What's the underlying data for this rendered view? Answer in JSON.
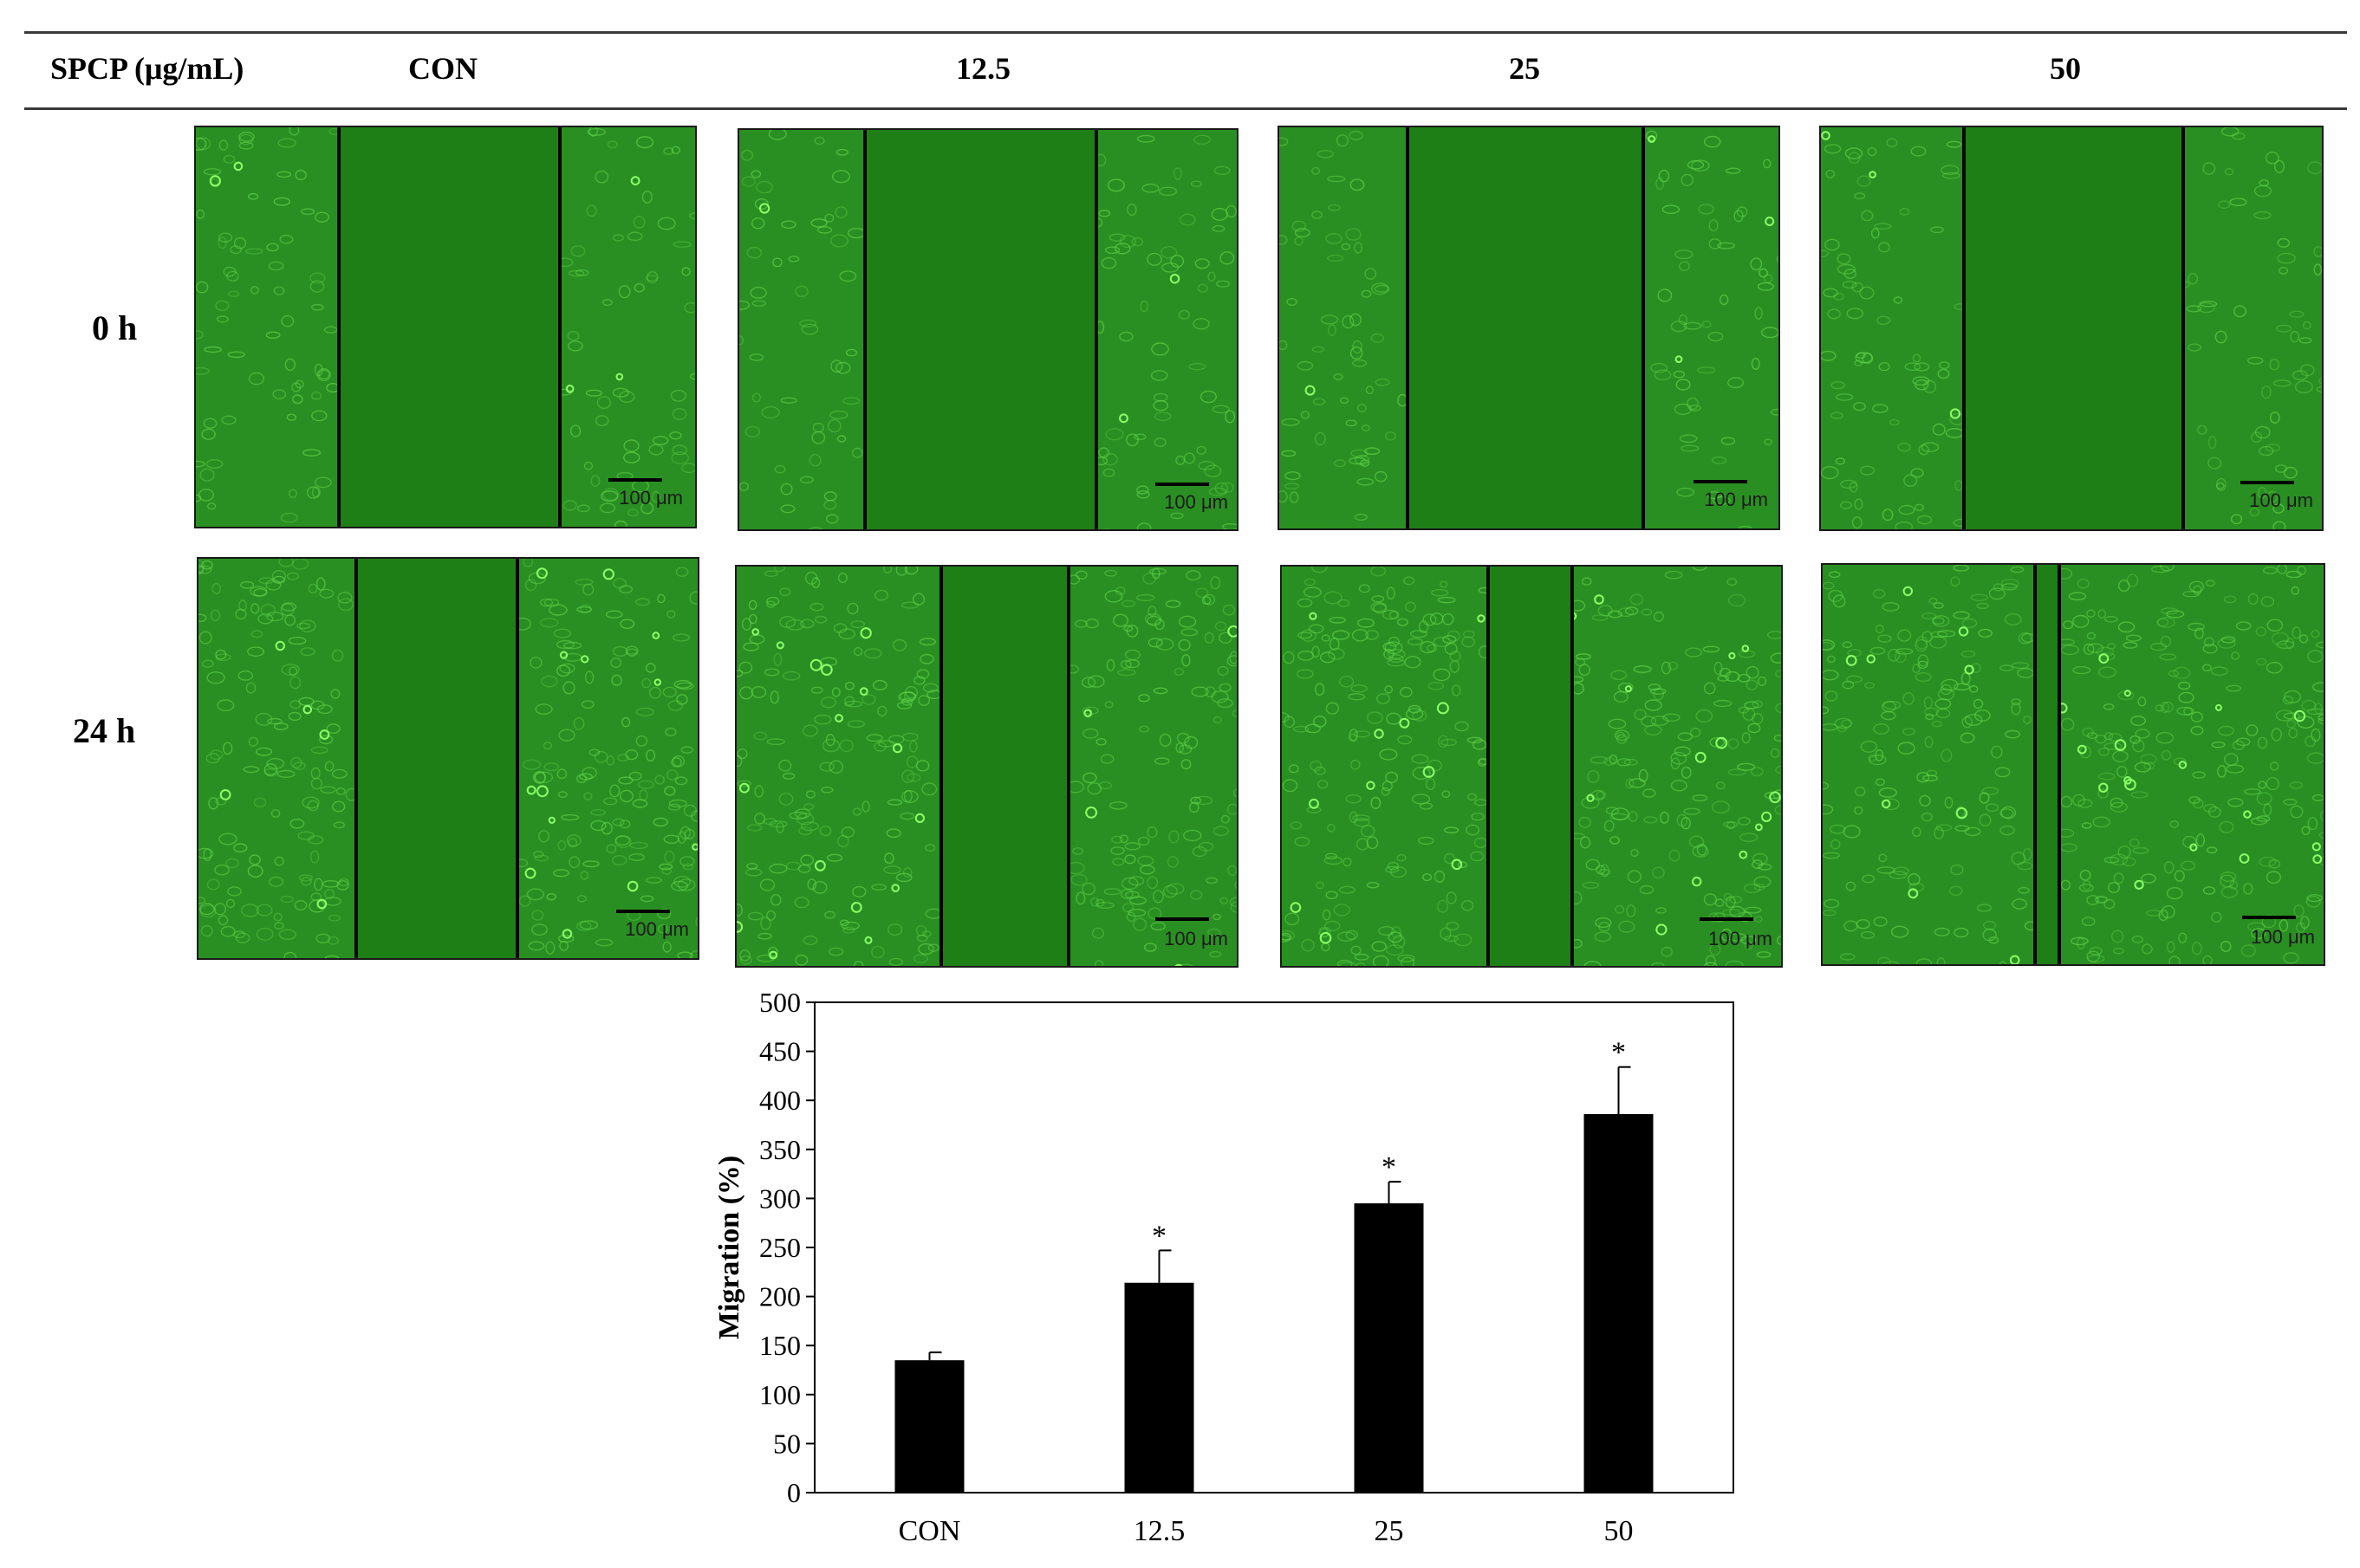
{
  "header": {
    "row_label": "SPCP (μg/mL)",
    "columns": [
      "CON",
      "12.5",
      "25",
      "50"
    ]
  },
  "rows": [
    "0 h",
    "24 h"
  ],
  "scale_label": "100 μm",
  "colors": {
    "tissue": "#2a8f22",
    "wound": "#1f7f17",
    "cell_outline": "#5fd24a",
    "bright_cell": "#8dff6a",
    "bar": "#000000"
  },
  "chart_data": {
    "type": "bar",
    "categories": [
      "CON",
      "12.5",
      "25",
      "50"
    ],
    "values": [
      135,
      214,
      295,
      386
    ],
    "errors": [
      8,
      33,
      22,
      48
    ],
    "significance": [
      "",
      "*",
      "*",
      "*"
    ],
    "title": "",
    "xlabel": "",
    "ylabel": "Migration (%)",
    "ylim": [
      0,
      500
    ],
    "yticks": [
      0,
      50,
      100,
      150,
      200,
      250,
      300,
      350,
      400,
      450,
      500
    ],
    "grid": false,
    "legend": "none",
    "bar_color": "#000000"
  }
}
